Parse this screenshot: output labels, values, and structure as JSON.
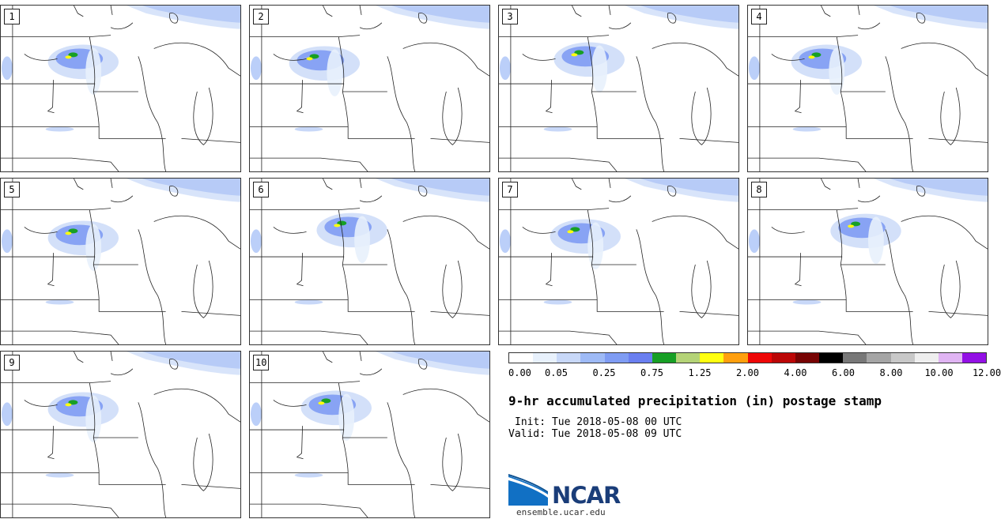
{
  "panels": [
    {
      "label": "1"
    },
    {
      "label": "2"
    },
    {
      "label": "3"
    },
    {
      "label": "4"
    },
    {
      "label": "5"
    },
    {
      "label": "6"
    },
    {
      "label": "7"
    },
    {
      "label": "8"
    },
    {
      "label": "9"
    },
    {
      "label": "10"
    }
  ],
  "colorbar": {
    "colors": [
      "#ffffff",
      "#e8f1fc",
      "#c8d8f8",
      "#9ebaf6",
      "#7f9cf3",
      "#6a7ff0",
      "#179f25",
      "#b4d377",
      "#ffff10",
      "#ff9f0e",
      "#ee0707",
      "#bb0606",
      "#770303",
      "#000000",
      "#787878",
      "#a5a5a5",
      "#c8c8c8",
      "#eeeeee",
      "#e0b4f3",
      "#9310e5"
    ],
    "tick_labels": [
      "0.00",
      "0.05",
      "0.25",
      "0.75",
      "1.25",
      "2.00",
      "4.00",
      "6.00",
      "8.00",
      "10.00",
      "12.00"
    ]
  },
  "title": "9-hr accumulated precipitation (in) postage stamp",
  "init": "Init: Tue 2018-05-08 00 UTC",
  "valid": "Valid: Tue 2018-05-08 09 UTC",
  "logo": {
    "name": "NCAR",
    "url": "ensemble.ucar.edu"
  }
}
